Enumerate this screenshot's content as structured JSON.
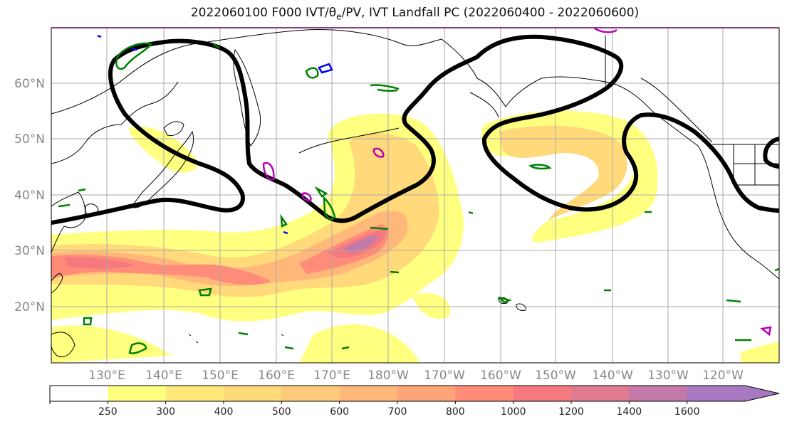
{
  "title": {
    "prefix": "2022060100 F000 IVT/",
    "theta": "θ",
    "theta_sub": "e",
    "suffix": "/PV, IVT Landfall PC (2022060400 - 2022060600)"
  },
  "map": {
    "lat_labels": [
      "20°N",
      "30°N",
      "40°N",
      "50°N",
      "60°N"
    ],
    "lon_labels": [
      "130°E",
      "140°E",
      "150°E",
      "160°E",
      "170°E",
      "180°W",
      "170°W",
      "160°W",
      "150°W",
      "140°W",
      "130°W",
      "120°W"
    ],
    "colors": {
      "land_outline": "#000000",
      "pv_contour": "#000000",
      "theta_contour_green": "#008000",
      "theta_contour_magenta": "#bb00bb",
      "theta_contour_blue": "#0000ee",
      "gridline": "#aaaaaa"
    }
  },
  "colorbar": {
    "ticks": [
      "250",
      "300",
      "400",
      "500",
      "600",
      "700",
      "800",
      "1000",
      "1200",
      "1400",
      "1600"
    ],
    "colors": [
      "#ffffff",
      "#ffff80",
      "#ffe87a",
      "#ffd97a",
      "#ffcb7a",
      "#ffb87a",
      "#ffa478",
      "#ff8c78",
      "#f47a80",
      "#e07a90",
      "#c47aa8",
      "#a878c0"
    ]
  }
}
